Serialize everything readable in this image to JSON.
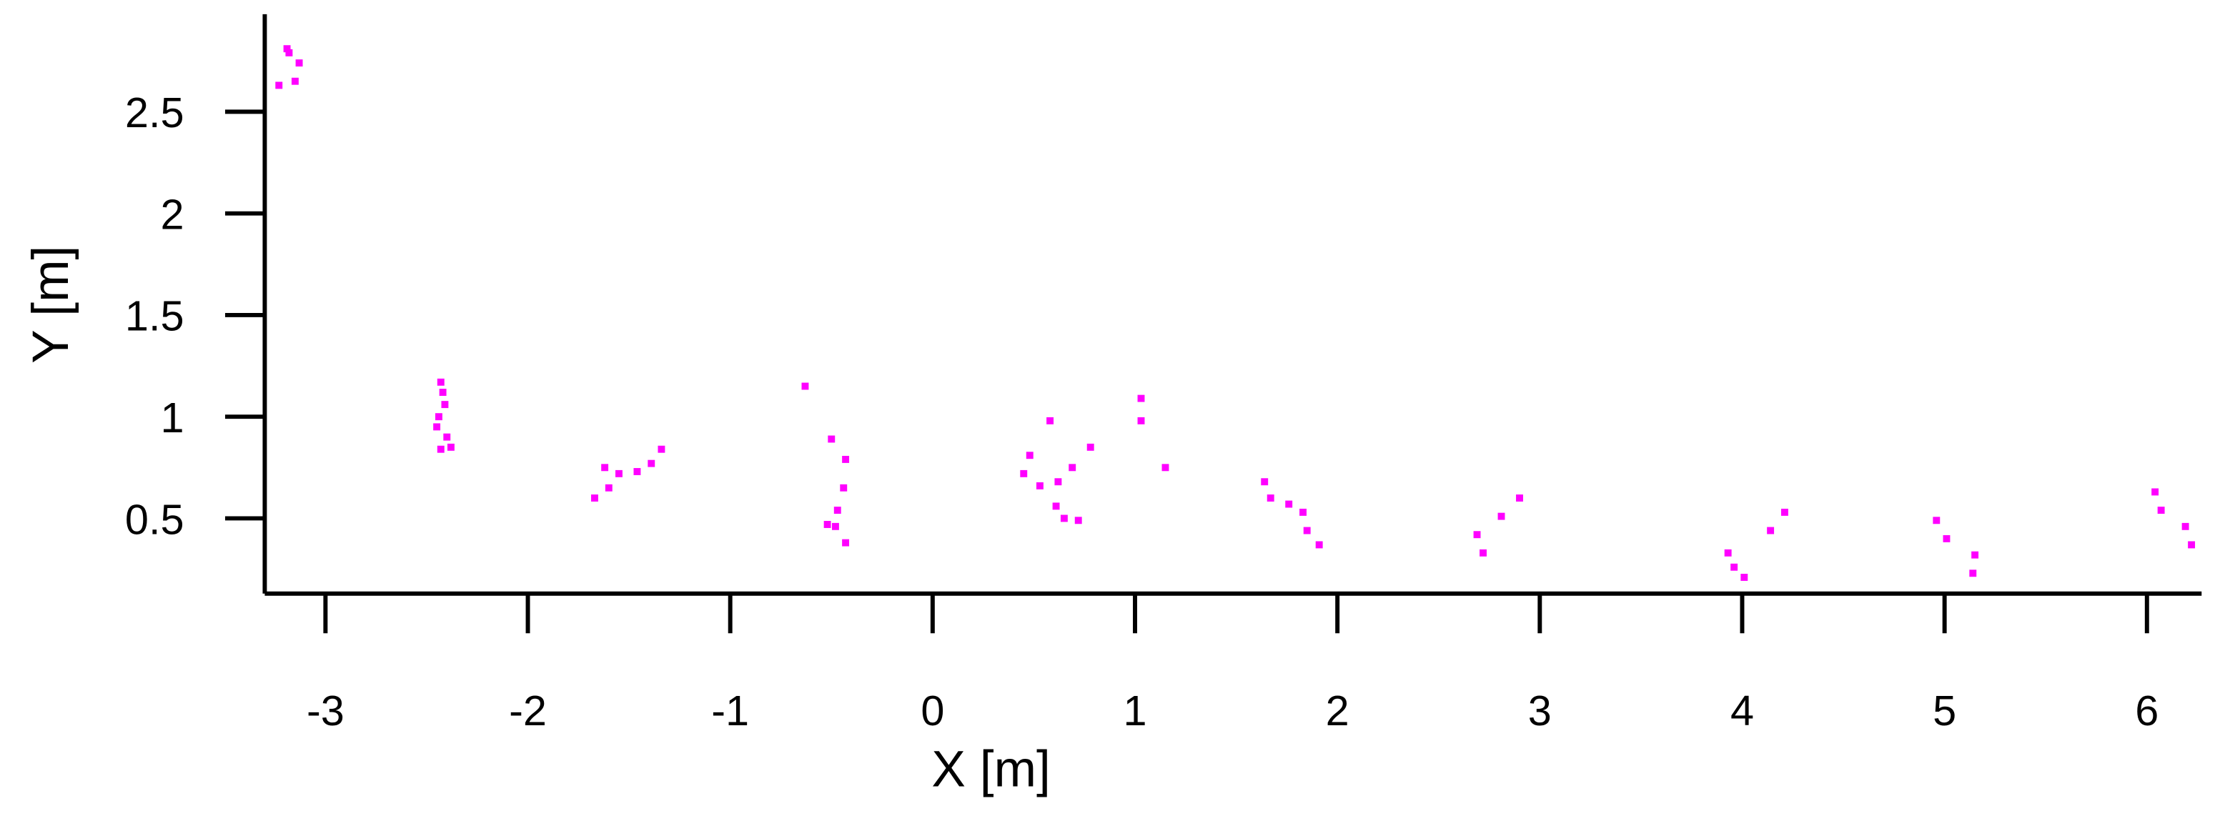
{
  "chart_data": {
    "type": "scatter",
    "xlabel": "X [m]",
    "ylabel": "Y [m]",
    "color": "#ff00ff",
    "xlim": [
      -3.3,
      6.27
    ],
    "ylim": [
      0.13,
      2.98
    ],
    "xticks": [
      -3,
      -2,
      -1,
      0,
      1,
      2,
      3,
      4,
      5,
      6
    ],
    "yticks": [
      0.5,
      1,
      1.5,
      2,
      2.5
    ],
    "x": [
      -3.18,
      -3.13,
      -3.15,
      -3.23,
      -3.19,
      -2.43,
      -2.42,
      -2.41,
      -2.44,
      -2.45,
      -2.4,
      -2.38,
      -2.43,
      -1.67,
      -1.6,
      -1.55,
      -1.62,
      -1.46,
      -1.39,
      -1.34,
      -0.63,
      -0.5,
      -0.43,
      -0.44,
      -0.47,
      -0.52,
      -0.48,
      -0.43,
      0.58,
      0.48,
      0.45,
      0.53,
      0.62,
      0.69,
      0.78,
      0.61,
      0.65,
      0.72,
      1.03,
      1.03,
      1.15,
      1.64,
      1.67,
      1.76,
      1.83,
      1.85,
      1.91,
      2.69,
      2.72,
      2.81,
      2.9,
      3.93,
      3.96,
      4.01,
      4.14,
      4.21,
      4.96,
      5.01,
      5.15,
      5.14,
      6.04,
      6.07,
      6.19,
      6.22
    ],
    "values": [
      2.79,
      2.74,
      2.65,
      2.63,
      2.81,
      1.17,
      1.12,
      1.06,
      1.0,
      0.95,
      0.9,
      0.85,
      0.84,
      0.6,
      0.65,
      0.72,
      0.75,
      0.73,
      0.77,
      0.84,
      1.15,
      0.89,
      0.79,
      0.65,
      0.54,
      0.47,
      0.46,
      0.38,
      0.98,
      0.81,
      0.72,
      0.66,
      0.68,
      0.75,
      0.85,
      0.56,
      0.5,
      0.49,
      1.09,
      0.98,
      0.75,
      0.68,
      0.6,
      0.57,
      0.53,
      0.44,
      0.37,
      0.42,
      0.33,
      0.51,
      0.6,
      0.33,
      0.26,
      0.21,
      0.44,
      0.53,
      0.49,
      0.4,
      0.32,
      0.23,
      0.63,
      0.54,
      0.46,
      0.37
    ]
  }
}
